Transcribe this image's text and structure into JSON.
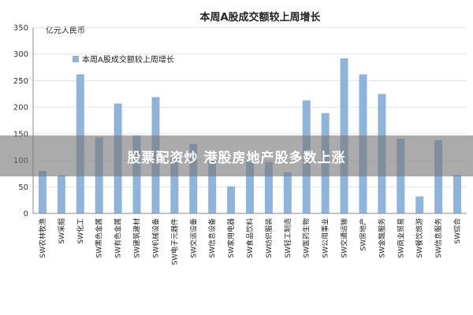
{
  "chart_data": {
    "type": "bar",
    "title": "本周A股成交额较上周增长",
    "unit_label": "亿元人民币",
    "legend": "本周A股成交额较上周增长",
    "categories": [
      "SW农林牧渔",
      "SW采掘",
      "SW化工",
      "SW黑色金属",
      "SW有色金属",
      "SW建筑建材",
      "SW机械设备",
      "SW电子元器件",
      "SW交运设备",
      "SW信息设备",
      "SW家用电器",
      "SW食品饮料",
      "SW纺织服装",
      "SW轻工制造",
      "SW医药生物",
      "SW公用事业",
      "SW交通运输",
      "SW房地产",
      "SW金融服务",
      "SW商业贸易",
      "SW餐饮旅游",
      "SW信息服务",
      "SW综合"
    ],
    "values": [
      80,
      72,
      262,
      143,
      207,
      147,
      219,
      110,
      131,
      105,
      51,
      97,
      97,
      78,
      213,
      189,
      292,
      262,
      225,
      141,
      32,
      138,
      72
    ],
    "ylim": [
      0,
      350
    ],
    "yticks": [
      0,
      50,
      100,
      150,
      200,
      250,
      300,
      350
    ],
    "grid": true,
    "legend_position": "top-left",
    "bar_color": "#8fb4dc"
  },
  "overlay_text": "股票配资炒 港股房地产股多数上涨"
}
